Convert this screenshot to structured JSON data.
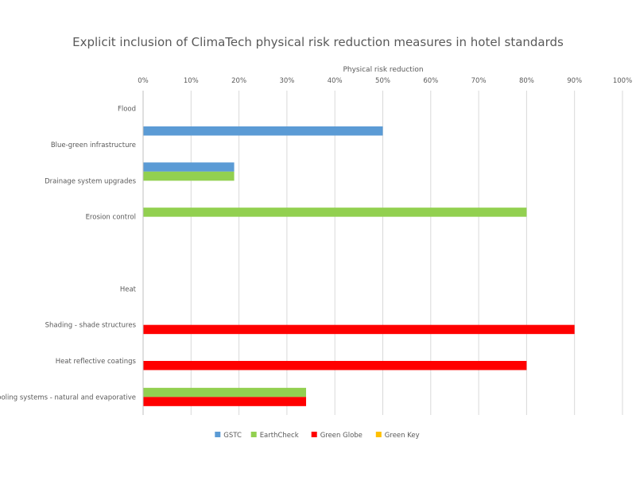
{
  "chart_data": {
    "type": "bar",
    "orientation": "horizontal",
    "title": "Explicit inclusion of ClimaTech physical risk reduction measures in hotel standards",
    "xlabel": "Physical risk reduction",
    "ylabel": "",
    "xlim": [
      0,
      100
    ],
    "x_ticks": [
      "0%",
      "10%",
      "20%",
      "30%",
      "40%",
      "50%",
      "60%",
      "70%",
      "80%",
      "90%",
      "100%"
    ],
    "x_axis_position": "top",
    "grid": true,
    "legend_position": "bottom",
    "categories": [
      "Flood",
      "Blue-green infrastructure",
      "Drainage system upgrades",
      "Erosion control",
      "",
      "Heat",
      "Shading - shade structures",
      "Heat reflective coatings",
      "Cooling systems - natural and evaporative"
    ],
    "series": [
      {
        "name": "GSTC",
        "color": "#5b9bd5",
        "values": [
          null,
          50,
          19,
          null,
          null,
          null,
          null,
          null,
          null
        ]
      },
      {
        "name": "EarthCheck",
        "color": "#92d050",
        "values": [
          null,
          null,
          19,
          80,
          null,
          null,
          null,
          null,
          34
        ]
      },
      {
        "name": "Green Globe",
        "color": "#ff0000",
        "values": [
          null,
          null,
          null,
          null,
          null,
          null,
          90,
          80,
          34
        ]
      },
      {
        "name": "Green Key",
        "color": "#ffc000",
        "values": [
          null,
          null,
          null,
          null,
          null,
          null,
          null,
          null,
          null
        ]
      }
    ]
  }
}
